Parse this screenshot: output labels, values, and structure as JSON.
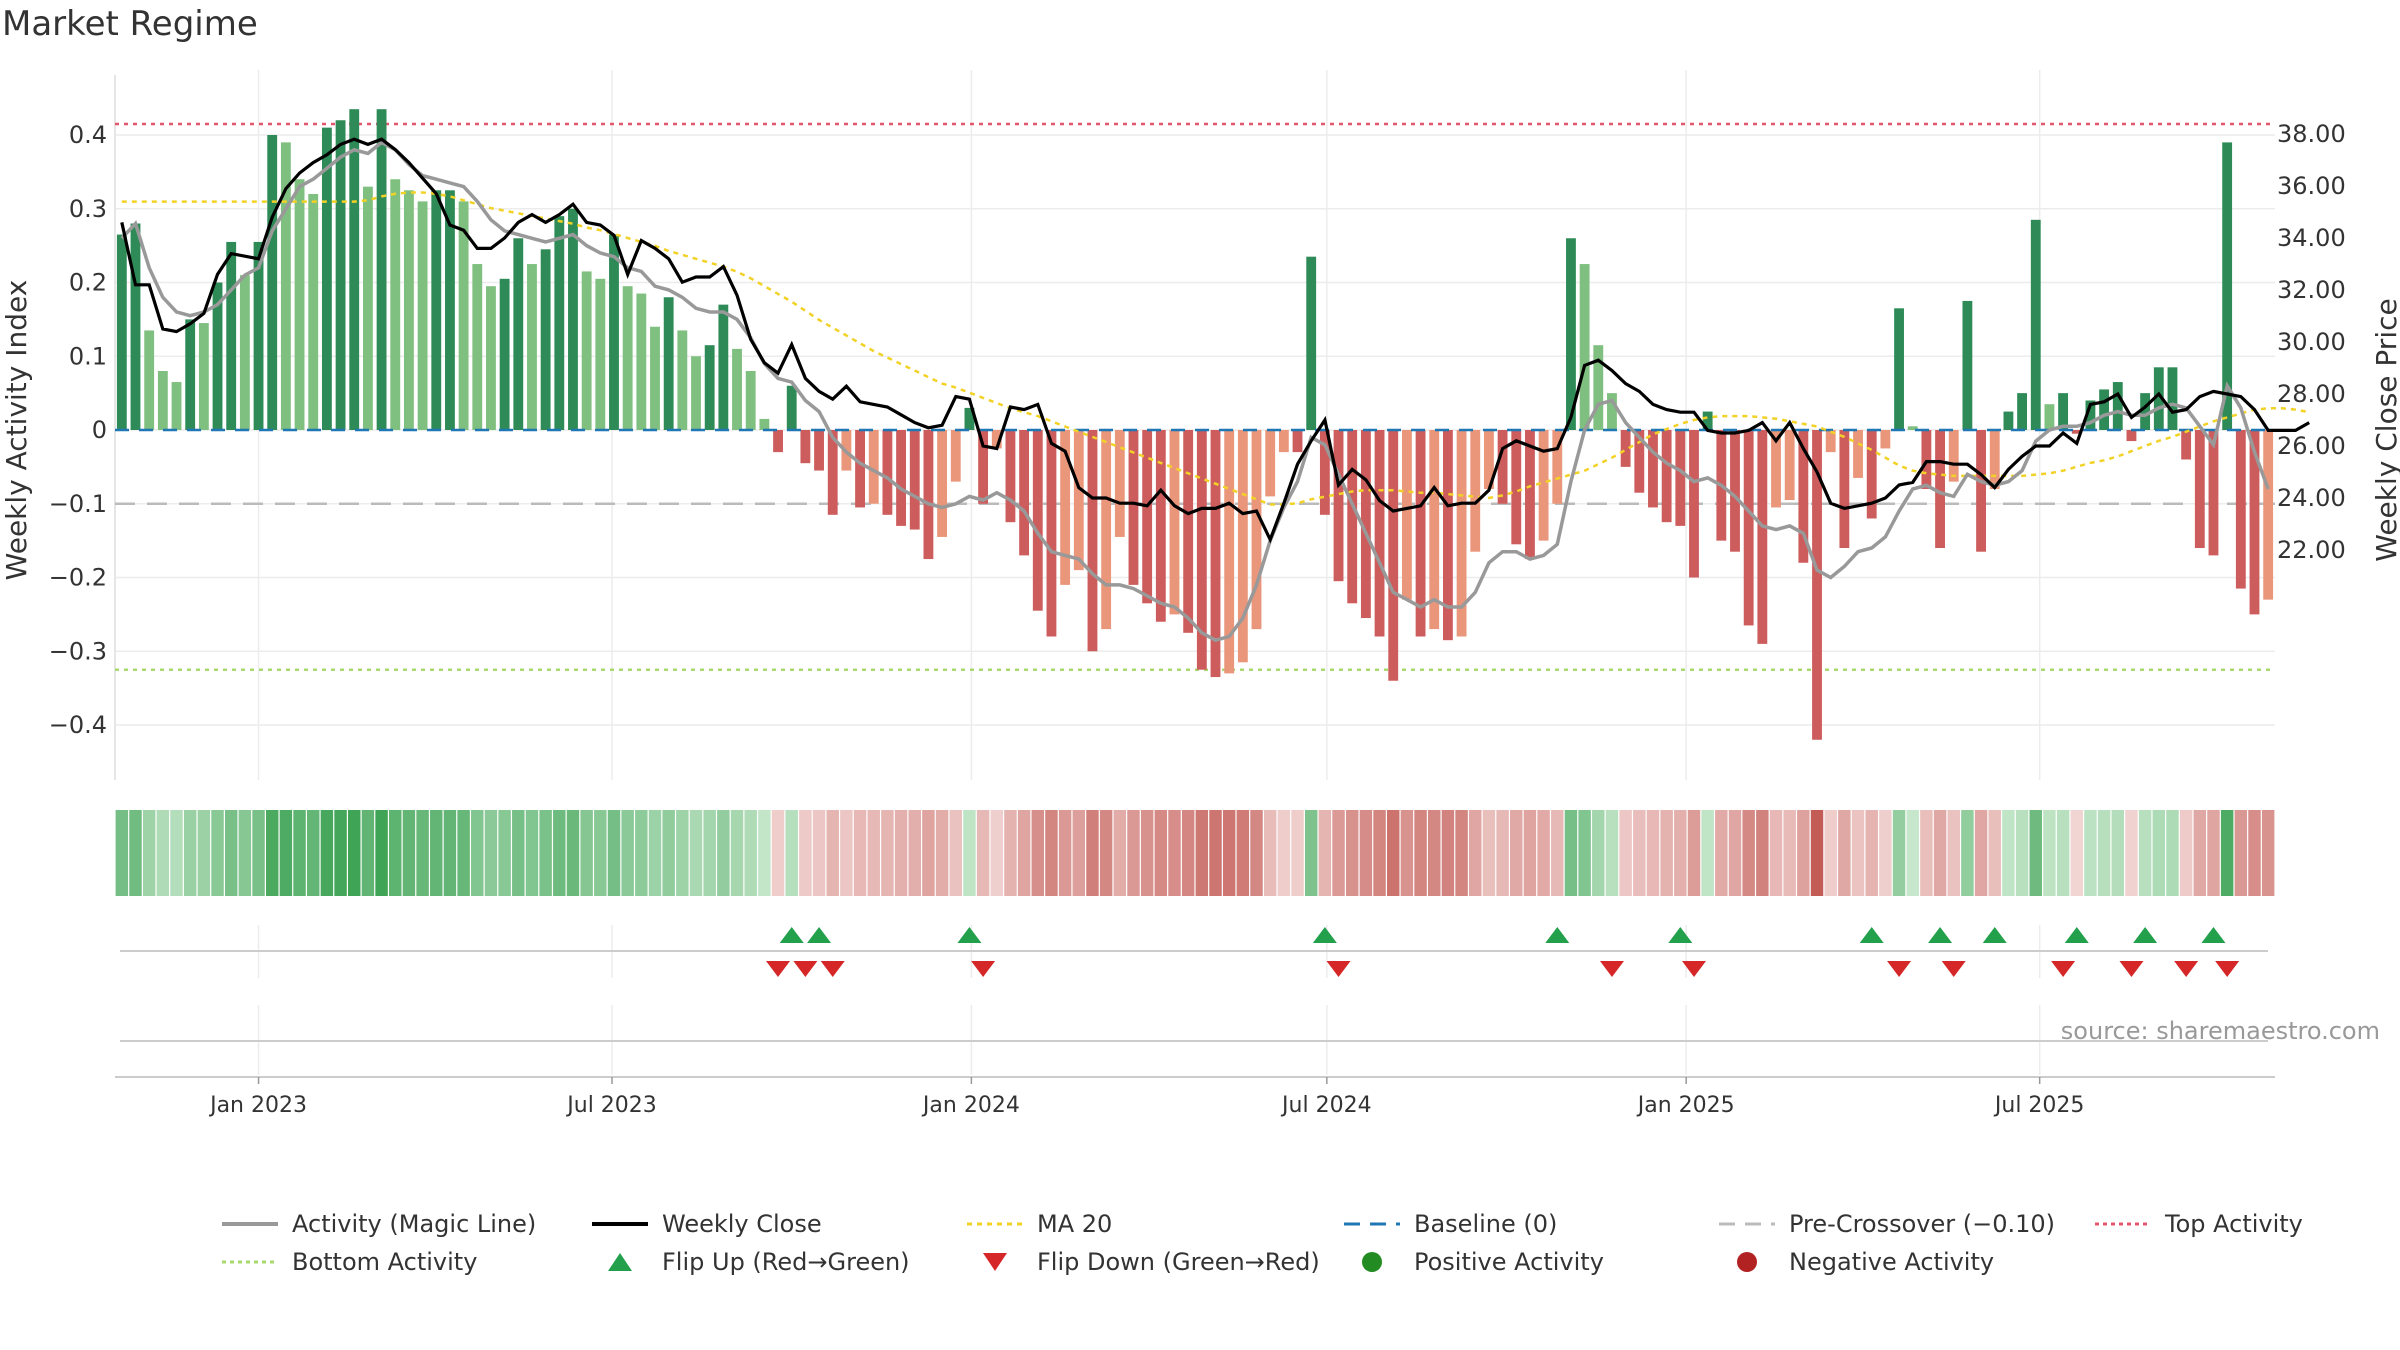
{
  "title": "Market Regime",
  "source_label": "source: sharemaestro.com",
  "colors": {
    "pos_strong": "#2e8b57",
    "pos_light": "#7fbf7f",
    "neg_strong": "#cd5c5c",
    "neg_light": "#e9967a",
    "magic_line": "#999999",
    "close_line": "#000000",
    "ma20": "#f2d226",
    "baseline": "#1f77b4",
    "pre_crossover": "#bbbbbb",
    "top_activity": "#e3566e",
    "bottom_activity": "#a8d86e",
    "flip_up": "#22a04b",
    "flip_down": "#d62728"
  },
  "chart_data": {
    "type": "bar",
    "ylabel": "Weekly Activity Index",
    "y2label": "Weekly Close Price",
    "ylim": [
      -0.48,
      0.48
    ],
    "y2lim": [
      20.8,
      39.2
    ],
    "yticks": [
      0.4,
      0.3,
      0.2,
      0.1,
      0,
      -0.1,
      -0.2,
      -0.3,
      -0.4
    ],
    "ytick_labels": [
      "0.4",
      "0.3",
      "0.2",
      "0.1",
      "0",
      "−0.1",
      "−0.2",
      "−0.3",
      "−0.4"
    ],
    "y2ticks": [
      38,
      36,
      34,
      32,
      30,
      28,
      26,
      24,
      22
    ],
    "y2tick_labels": [
      "38.00",
      "36.00",
      "34.00",
      "32.00",
      "30.00",
      "28.00",
      "26.00",
      "24.00",
      "22.00"
    ],
    "x_start": "2022-10-23",
    "x_step_days": 7,
    "x_ticks": [
      "Jan 2023",
      "Jul 2023",
      "Jan 2024",
      "Jul 2024",
      "Jan 2025",
      "Jul 2025"
    ],
    "x_tick_dates": [
      "2023-01-01",
      "2023-07-01",
      "2024-01-01",
      "2024-07-01",
      "2025-01-01",
      "2025-07-01"
    ],
    "levels": {
      "top": 0.415,
      "bottom": -0.325,
      "pre_crossover": -0.1,
      "baseline": 0
    },
    "activity": [
      0.265,
      0.28,
      0.135,
      0.08,
      0.065,
      0.15,
      0.145,
      0.2,
      0.255,
      0.21,
      0.255,
      0.4,
      0.39,
      0.34,
      0.32,
      0.41,
      0.42,
      0.435,
      0.33,
      0.435,
      0.34,
      0.325,
      0.31,
      0.325,
      0.325,
      0.31,
      0.225,
      0.195,
      0.205,
      0.26,
      0.225,
      0.245,
      0.29,
      0.3,
      0.215,
      0.205,
      0.265,
      0.195,
      0.185,
      0.14,
      0.18,
      0.135,
      0.1,
      0.115,
      0.17,
      0.11,
      0.08,
      0.015,
      -0.03,
      0.06,
      -0.045,
      -0.055,
      -0.115,
      -0.055,
      -0.105,
      -0.1,
      -0.115,
      -0.13,
      -0.135,
      -0.175,
      -0.145,
      -0.07,
      0.03,
      -0.1,
      -0.025,
      -0.125,
      -0.17,
      -0.245,
      -0.28,
      -0.21,
      -0.19,
      -0.3,
      -0.27,
      -0.145,
      -0.21,
      -0.235,
      -0.26,
      -0.25,
      -0.275,
      -0.325,
      -0.335,
      -0.33,
      -0.315,
      -0.27,
      -0.09,
      -0.03,
      -0.03,
      0.235,
      -0.115,
      -0.205,
      -0.235,
      -0.255,
      -0.28,
      -0.34,
      -0.23,
      -0.28,
      -0.27,
      -0.285,
      -0.28,
      -0.165,
      -0.08,
      -0.1,
      -0.155,
      -0.175,
      -0.15,
      -0.1,
      0.26,
      0.225,
      0.115,
      0.05,
      -0.05,
      -0.085,
      -0.105,
      -0.125,
      -0.13,
      -0.2,
      0.025,
      -0.15,
      -0.165,
      -0.265,
      -0.29,
      -0.105,
      -0.095,
      -0.18,
      -0.42,
      -0.03,
      -0.16,
      -0.065,
      -0.12,
      -0.025,
      0.165,
      0.005,
      -0.08,
      -0.16,
      -0.07,
      0.175,
      -0.165,
      -0.08,
      0.025,
      0.05,
      0.285,
      0.035,
      0.05,
      -0.005,
      0.04,
      0.055,
      0.065,
      -0.015,
      0.05,
      0.085,
      0.085,
      -0.04,
      -0.16,
      -0.17,
      0.39,
      -0.215,
      -0.25,
      -0.23
    ],
    "close": [
      34.6,
      32.2,
      32.2,
      30.5,
      30.4,
      30.7,
      31.1,
      32.6,
      33.4,
      33.3,
      33.2,
      34.8,
      35.9,
      36.5,
      36.9,
      37.2,
      37.6,
      37.8,
      37.6,
      37.8,
      37.4,
      36.9,
      36.3,
      35.7,
      34.5,
      34.3,
      33.6,
      33.6,
      34.0,
      34.6,
      34.9,
      34.6,
      34.9,
      35.3,
      34.6,
      34.5,
      34.1,
      32.6,
      33.9,
      33.6,
      33.2,
      32.3,
      32.5,
      32.5,
      32.9,
      31.8,
      30.1,
      29.2,
      28.8,
      29.9,
      28.6,
      28.1,
      27.8,
      28.3,
      27.7,
      27.6,
      27.5,
      27.2,
      26.9,
      26.7,
      26.8,
      27.9,
      27.8,
      26.0,
      25.9,
      27.5,
      27.4,
      27.6,
      26.1,
      25.8,
      24.4,
      24.0,
      24.0,
      23.8,
      23.8,
      23.7,
      24.3,
      23.7,
      23.4,
      23.6,
      23.6,
      23.8,
      23.4,
      23.5,
      22.4,
      23.8,
      25.3,
      26.2,
      27.0,
      24.5,
      25.1,
      24.7,
      23.9,
      23.5,
      23.6,
      23.7,
      24.4,
      23.7,
      23.8,
      23.8,
      24.3,
      25.9,
      26.2,
      26.0,
      25.8,
      25.9,
      27.1,
      29.1,
      29.3,
      28.9,
      28.4,
      28.1,
      27.6,
      27.4,
      27.3,
      27.3,
      26.6,
      26.5,
      26.5,
      26.6,
      26.9,
      26.2,
      26.9,
      25.9,
      25.0,
      23.8,
      23.6,
      23.7,
      23.8,
      24.0,
      24.5,
      24.6,
      25.4,
      25.4,
      25.3,
      25.3,
      24.9,
      24.4,
      25.1,
      25.6,
      26.0,
      26.0,
      26.5,
      26.1,
      27.6,
      27.7,
      28.0,
      27.1,
      27.5,
      28.0,
      27.3,
      27.4,
      27.9,
      28.1,
      28.0,
      27.9,
      27.4,
      26.6,
      26.6,
      26.6,
      26.9
    ],
    "magic_line": [
      0.26,
      0.28,
      0.22,
      0.18,
      0.16,
      0.155,
      0.16,
      0.17,
      0.19,
      0.21,
      0.22,
      0.27,
      0.3,
      0.33,
      0.34,
      0.355,
      0.37,
      0.38,
      0.375,
      0.39,
      0.38,
      0.36,
      0.345,
      0.34,
      0.335,
      0.33,
      0.31,
      0.285,
      0.27,
      0.265,
      0.26,
      0.255,
      0.26,
      0.265,
      0.25,
      0.24,
      0.235,
      0.22,
      0.215,
      0.195,
      0.19,
      0.18,
      0.165,
      0.16,
      0.16,
      0.15,
      0.125,
      0.09,
      0.07,
      0.065,
      0.04,
      0.025,
      -0.01,
      -0.03,
      -0.045,
      -0.055,
      -0.065,
      -0.08,
      -0.09,
      -0.1,
      -0.105,
      -0.1,
      -0.09,
      -0.095,
      -0.085,
      -0.095,
      -0.11,
      -0.14,
      -0.165,
      -0.17,
      -0.175,
      -0.195,
      -0.21,
      -0.21,
      -0.215,
      -0.225,
      -0.235,
      -0.24,
      -0.255,
      -0.275,
      -0.285,
      -0.28,
      -0.255,
      -0.21,
      -0.15,
      -0.105,
      -0.07,
      -0.01,
      -0.02,
      -0.06,
      -0.1,
      -0.14,
      -0.18,
      -0.22,
      -0.23,
      -0.24,
      -0.23,
      -0.24,
      -0.24,
      -0.22,
      -0.18,
      -0.165,
      -0.165,
      -0.175,
      -0.17,
      -0.155,
      -0.07,
      0.0,
      0.035,
      0.04,
      0.01,
      -0.01,
      -0.03,
      -0.045,
      -0.055,
      -0.07,
      -0.065,
      -0.075,
      -0.09,
      -0.11,
      -0.13,
      -0.135,
      -0.13,
      -0.14,
      -0.19,
      -0.2,
      -0.185,
      -0.165,
      -0.16,
      -0.145,
      -0.11,
      -0.08,
      -0.075,
      -0.085,
      -0.09,
      -0.06,
      -0.07,
      -0.075,
      -0.07,
      -0.055,
      -0.015,
      0.0,
      0.005,
      0.005,
      0.01,
      0.02,
      0.025,
      0.02,
      0.02,
      0.03,
      0.035,
      0.03,
      0.005,
      -0.02,
      0.06,
      0.03,
      -0.03,
      -0.08
    ],
    "ma20": [
      35.4,
      35.4,
      35.4,
      35.4,
      35.4,
      35.4,
      35.4,
      35.4,
      35.4,
      35.4,
      35.4,
      35.4,
      35.4,
      35.4,
      35.4,
      35.4,
      35.4,
      35.4,
      35.45,
      35.6,
      35.7,
      35.75,
      35.75,
      35.7,
      35.6,
      35.45,
      35.3,
      35.15,
      35.05,
      34.95,
      34.85,
      34.75,
      34.65,
      34.55,
      34.4,
      34.3,
      34.15,
      34.0,
      33.85,
      33.7,
      33.5,
      33.35,
      33.2,
      33.05,
      32.9,
      32.7,
      32.45,
      32.15,
      31.85,
      31.55,
      31.2,
      30.85,
      30.55,
      30.25,
      29.95,
      29.65,
      29.4,
      29.15,
      28.9,
      28.65,
      28.4,
      28.25,
      28.05,
      27.85,
      27.65,
      27.45,
      27.3,
      27.15,
      26.95,
      26.75,
      26.55,
      26.35,
      26.15,
      25.95,
      25.75,
      25.55,
      25.35,
      25.15,
      24.95,
      24.75,
      24.55,
      24.35,
      24.15,
      23.95,
      23.75,
      23.75,
      23.8,
      23.95,
      24.05,
      24.15,
      24.25,
      24.3,
      24.3,
      24.3,
      24.25,
      24.2,
      24.2,
      24.15,
      24.1,
      24.05,
      24.0,
      24.1,
      24.25,
      24.45,
      24.6,
      24.75,
      24.9,
      25.05,
      25.3,
      25.55,
      25.85,
      26.15,
      26.45,
      26.65,
      26.85,
      27.0,
      27.1,
      27.15,
      27.15,
      27.15,
      27.1,
      27.05,
      26.95,
      26.85,
      26.75,
      26.55,
      26.35,
      26.1,
      25.85,
      25.55,
      25.25,
      25.05,
      24.95,
      24.9,
      24.85,
      24.85,
      24.85,
      24.85,
      24.85,
      24.85,
      24.9,
      24.95,
      25.05,
      25.2,
      25.35,
      25.45,
      25.6,
      25.8,
      26.0,
      26.2,
      26.35,
      26.55,
      26.75,
      26.95,
      27.1,
      27.25,
      27.4,
      27.45,
      27.45,
      27.4,
      27.3
    ],
    "flip_up_idx": [
      49,
      51,
      62,
      88,
      105,
      114,
      128,
      133,
      137,
      143,
      148,
      153
    ],
    "flip_down_idx": [
      48,
      50,
      52,
      63,
      89,
      109,
      115,
      130,
      134,
      142,
      147,
      151,
      154
    ],
    "legend": [
      {
        "label": "Activity (Magic Line)",
        "symbol": "line-magic"
      },
      {
        "label": "Weekly Close",
        "symbol": "line-close"
      },
      {
        "label": "MA 20",
        "symbol": "line-ma20"
      },
      {
        "label": "Baseline (0)",
        "symbol": "line-baseline"
      },
      {
        "label": "Pre-Crossover (−0.10)",
        "symbol": "line-precross"
      },
      {
        "label": "Top Activity",
        "symbol": "line-top"
      },
      {
        "label": "Bottom Activity",
        "symbol": "line-bottom"
      },
      {
        "label": "Flip Up (Red→Green)",
        "symbol": "triangle-up"
      },
      {
        "label": "Flip Down (Green→Red)",
        "symbol": "triangle-down"
      },
      {
        "label": "Positive Activity",
        "symbol": "dot-green"
      },
      {
        "label": "Negative Activity",
        "symbol": "dot-red"
      }
    ]
  }
}
